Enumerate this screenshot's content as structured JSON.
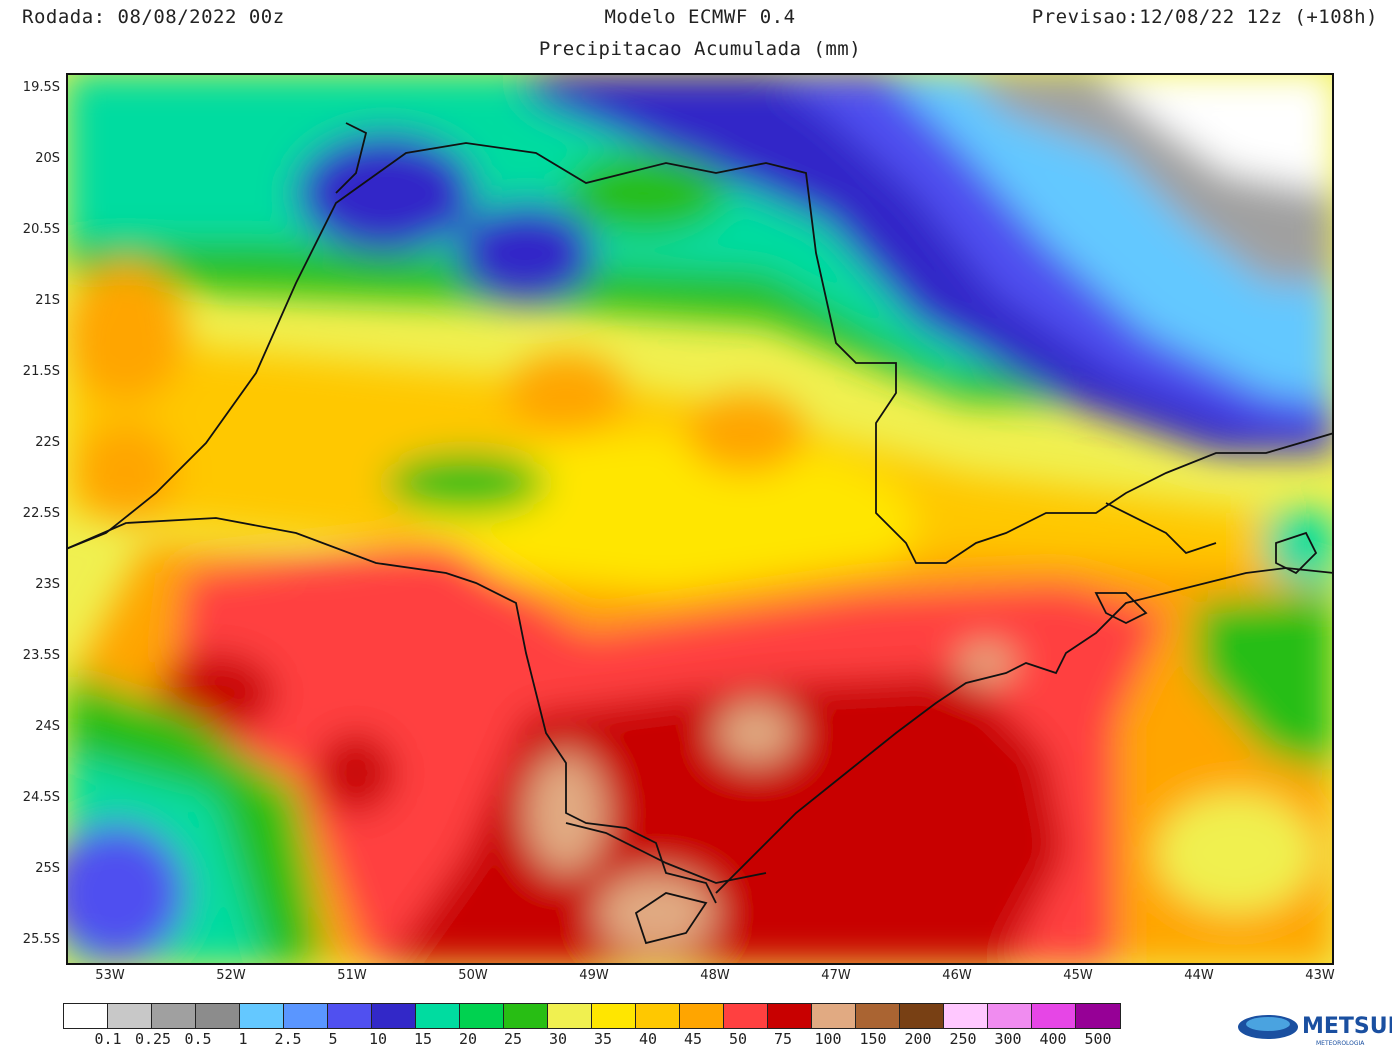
{
  "header": {
    "run": "Rodada: 08/08/2022 00z",
    "model": "Modelo ECMWF 0.4",
    "valid": "Previsao:12/08/22 12z (+108h)",
    "subtitle": "Precipitacao Acumulada (mm)"
  },
  "axes": {
    "lat_labels": [
      "19.5S",
      "20S",
      "20.5S",
      "21S",
      "21.5S",
      "22S",
      "22.5S",
      "23S",
      "23.5S",
      "24S",
      "24.5S",
      "25S",
      "25.5S"
    ],
    "lon_labels": [
      "53W",
      "52W",
      "51W",
      "50W",
      "49W",
      "48W",
      "47W",
      "46W",
      "45W",
      "44W",
      "43W"
    ]
  },
  "colorbar": {
    "colors": [
      "#ffffff",
      "#c8c8c8",
      "#a0a0a0",
      "#8c8c8c",
      "#64c8ff",
      "#5a96ff",
      "#5050f0",
      "#3228c8",
      "#00dca0",
      "#00d250",
      "#28be14",
      "#f0f050",
      "#ffe600",
      "#ffc800",
      "#ffa500",
      "#ff4040",
      "#c80000",
      "#e1aa82",
      "#aa6432",
      "#784014",
      "#ffc8ff",
      "#f08cf0",
      "#e646e6",
      "#960096"
    ],
    "labels": [
      "0.1",
      "0.25",
      "0.5",
      "1",
      "2.5",
      "5",
      "10",
      "15",
      "20",
      "25",
      "30",
      "35",
      "40",
      "45",
      "50",
      "75",
      "100",
      "150",
      "200",
      "250",
      "300",
      "400",
      "500"
    ]
  },
  "logo": {
    "name": "METSUL",
    "tagline": "METEOROLOGIA"
  }
}
